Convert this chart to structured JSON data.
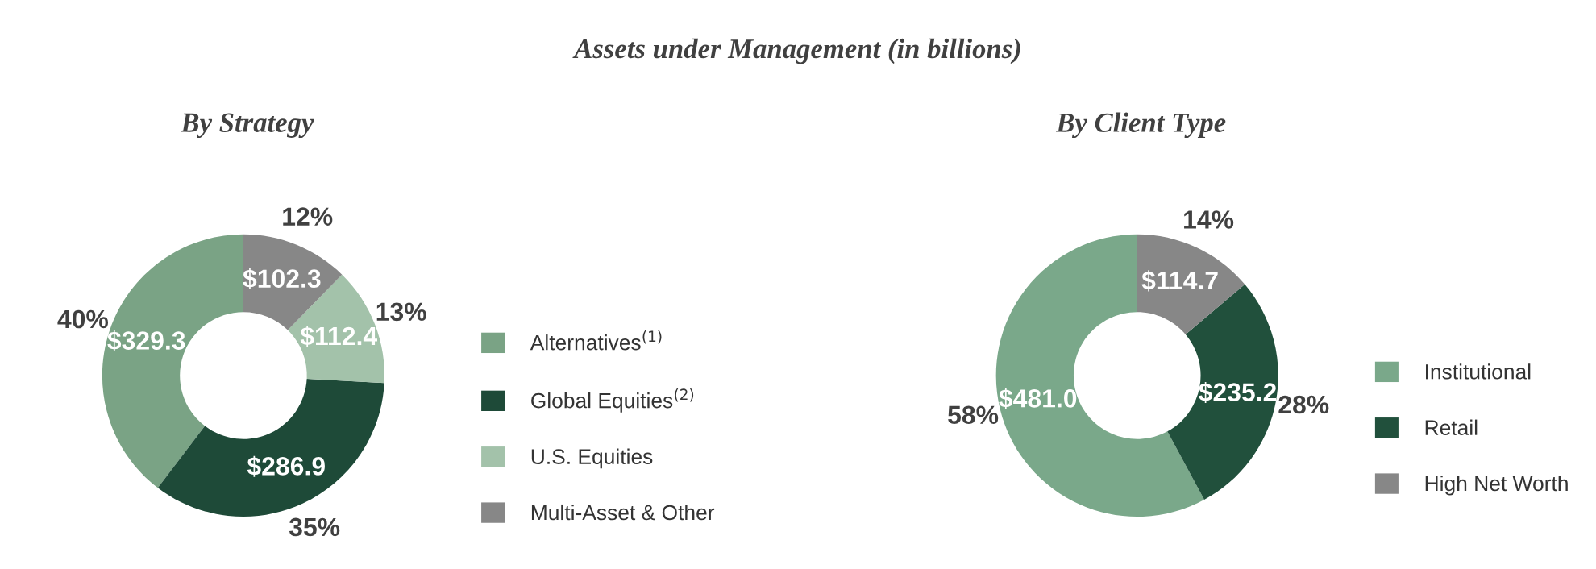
{
  "chart_data": [
    {
      "type": "donut",
      "title": "Assets under Management (in billions)",
      "subtitle": "By Strategy",
      "categories": [
        "Alternatives$^{(1)}$",
        "Global Equities$^{(2)}$",
        "U.S. Equities",
        "Multi-Asset & Other"
      ],
      "values": [
        329.3,
        286.9,
        112.4,
        102.3
      ],
      "colors": [
        "#7aa385",
        "#1e4a38",
        "#a3c2aa",
        "#878787"
      ],
      "value_labels": [
        "$329.3",
        "$286.9",
        "$112.4",
        "$102.3"
      ],
      "annotations": [
        "40%",
        "35%",
        "13%",
        "12%"
      ],
      "legend": "right"
    },
    {
      "type": "donut",
      "subtitle": "By Client Type",
      "categories": [
        "Institutional",
        "Retail",
        "High Net Worth"
      ],
      "values": [
        481.0,
        235.2,
        114.7
      ],
      "colors": [
        "#7aa88a",
        "#21503c",
        "#878787"
      ],
      "value_labels": [
        "$481.0",
        "$235.2",
        "$114.7"
      ],
      "annotations": [
        "58%",
        "28%",
        "14%"
      ],
      "legend": "right"
    }
  ]
}
